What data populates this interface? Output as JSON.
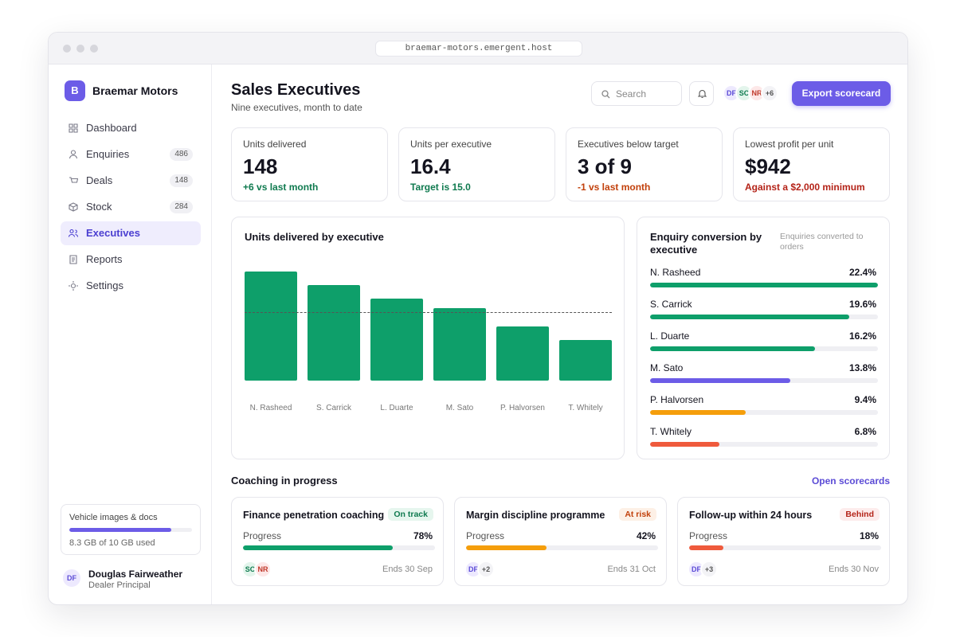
{
  "browser": {
    "url": "braemar-motors.emergent.host"
  },
  "sidebar": {
    "brand_initial": "B",
    "brand": "Braemar Motors",
    "nav": [
      {
        "label": "Dashboard"
      },
      {
        "label": "Enquiries",
        "count": 486
      },
      {
        "label": "Deals",
        "count": 148
      },
      {
        "label": "Stock",
        "count": 284
      },
      {
        "label": "Executives",
        "active": true
      },
      {
        "label": "Reports"
      },
      {
        "label": "Settings"
      }
    ],
    "storage": {
      "label": "Vehicle images & docs",
      "used": 8.3,
      "total": 10,
      "text": "8.3 GB of 10 GB used"
    },
    "user": {
      "initials": "DF",
      "name": "Douglas Fairweather",
      "role": "Dealer Principal"
    }
  },
  "header": {
    "title": "Sales Executives",
    "subtitle": "Nine executives, month to date",
    "search": "Search",
    "avatars": [
      "DF",
      "SC",
      "NR"
    ],
    "more": "+6",
    "button": "Export scorecard"
  },
  "kpis": [
    {
      "label": "Units delivered",
      "value": 148,
      "note": "+6 vs last month",
      "tone": "good"
    },
    {
      "label": "Units per executive",
      "value": 16.4,
      "note": "Target is 15.0",
      "tone": "good"
    },
    {
      "label": "Executives below target",
      "value": "3 of 9",
      "note": "-1 vs last month",
      "tone": "warn"
    },
    {
      "label": "Lowest profit per unit",
      "value": "$942",
      "note": "Against a $2,000 minimum",
      "tone": "bad"
    }
  ],
  "chart_data": [
    {
      "type": "bar",
      "title": "Units delivered by executive",
      "categories": [
        "N. Rasheed",
        "S. Carrick",
        "L. Duarte",
        "M. Sato",
        "P. Halvorsen",
        "T. Whitely"
      ],
      "values": [
        24,
        21,
        18,
        16,
        12,
        9
      ],
      "target": 15,
      "color": "#0e9f6a"
    },
    {
      "type": "hbar",
      "title": "Enquiry conversion by executive",
      "subtitle": "Enquiries converted to orders",
      "categories": [
        "N. Rasheed",
        "S. Carrick",
        "L. Duarte",
        "M. Sato",
        "P. Halvorsen",
        "T. Whitely"
      ],
      "values": [
        22.4,
        19.6,
        16.2,
        13.8,
        9.4,
        6.8
      ],
      "value_labels": [
        "22.4%",
        "19.6%",
        "16.2%",
        "13.8%",
        "9.4%",
        "6.8%"
      ],
      "colors": [
        "#0e9f6a",
        "#0e9f6a",
        "#0e9f6a",
        "#6c5ce7",
        "#f59e0b",
        "#ef5a3c"
      ]
    }
  ],
  "coaching": {
    "title": "Coaching in progress",
    "link": "Open scorecards",
    "progress_label": "Progress",
    "cards": [
      {
        "title": "Finance penetration coaching",
        "status": "On track",
        "tone": "good",
        "progress": 78,
        "progress_text": "78%",
        "avatars": [
          "SC",
          "NR"
        ],
        "ends": "Ends 30 Sep"
      },
      {
        "title": "Margin discipline programme",
        "status": "At risk",
        "tone": "warn",
        "progress": 42,
        "progress_text": "42%",
        "avatars": [
          "DF"
        ],
        "more": "+2",
        "ends": "Ends 31 Oct"
      },
      {
        "title": "Follow-up within 24 hours",
        "status": "Behind",
        "tone": "bad",
        "progress": 18,
        "progress_text": "18%",
        "avatars": [
          "DF"
        ],
        "more": "+3",
        "ends": "Ends 30 Nov"
      }
    ]
  }
}
